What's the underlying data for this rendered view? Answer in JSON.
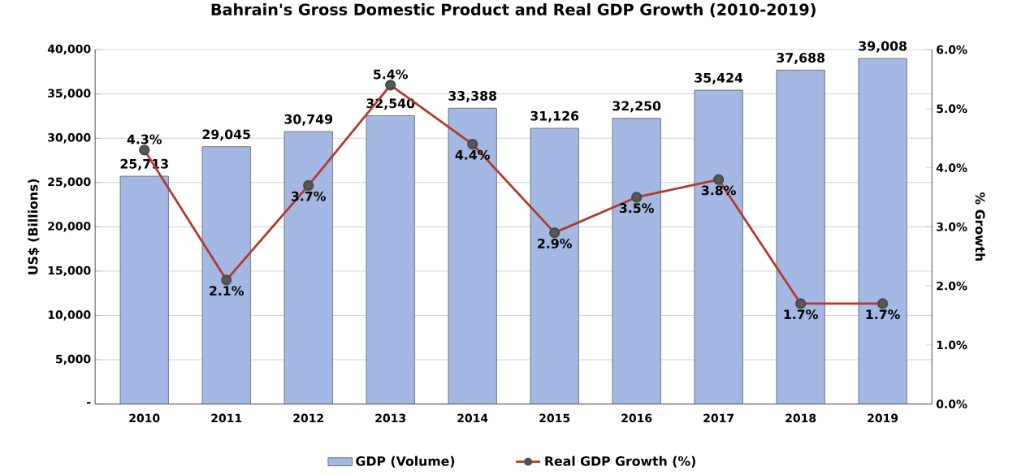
{
  "chart_data": {
    "type": "bar",
    "title": "Bahrain's Gross Domestic Product and Real GDP Growth (2010-2019)",
    "categories": [
      "2010",
      "2011",
      "2012",
      "2013",
      "2014",
      "2015",
      "2016",
      "2017",
      "2018",
      "2019"
    ],
    "series": [
      {
        "name": "GDP (Volume)",
        "color": "#a3b8e3",
        "values": [
          25713,
          29045,
          30749,
          32540,
          33388,
          31126,
          32250,
          35424,
          37688,
          39008
        ],
        "value_labels": [
          "25,713",
          "29,045",
          "30,749",
          "32,540",
          "33,388",
          "31,126",
          "32,250",
          "35,424",
          "37,688",
          "39,008"
        ]
      },
      {
        "name": "Real GDP Growth (%)",
        "type": "line",
        "axis": "y2",
        "color": "#b03a2e",
        "marker": "circle",
        "values": [
          4.3,
          2.1,
          3.7,
          5.4,
          4.4,
          2.9,
          3.5,
          3.8,
          1.7,
          1.7
        ],
        "value_labels": [
          "4.3%",
          "2.1%",
          "3.7%",
          "5.4%",
          "4.4%",
          "2.9%",
          "3.5%",
          "3.8%",
          "1.7%",
          "1.7%"
        ]
      }
    ],
    "ylabel": "US$ (Billions)",
    "y2label": "% Growth",
    "ylim": [
      0,
      40000
    ],
    "yticks": [
      {
        "value": 0,
        "label": "-"
      },
      {
        "value": 5000,
        "label": "5,000"
      },
      {
        "value": 10000,
        "label": "10,000"
      },
      {
        "value": 15000,
        "label": "15,000"
      },
      {
        "value": 20000,
        "label": "20,000"
      },
      {
        "value": 25000,
        "label": "25,000"
      },
      {
        "value": 30000,
        "label": "30,000"
      },
      {
        "value": 35000,
        "label": "35,000"
      },
      {
        "value": 40000,
        "label": "40,000"
      }
    ],
    "y2lim": [
      0,
      6.0
    ],
    "y2ticks": [
      {
        "value": 0,
        "label": "0.0%"
      },
      {
        "value": 1,
        "label": "1.0%"
      },
      {
        "value": 2,
        "label": "2.0%"
      },
      {
        "value": 3,
        "label": "3.0%"
      },
      {
        "value": 4,
        "label": "4.0%"
      },
      {
        "value": 5,
        "label": "5.0%"
      },
      {
        "value": 6,
        "label": "6.0%"
      }
    ],
    "grid": "y",
    "legend": "bottom"
  }
}
